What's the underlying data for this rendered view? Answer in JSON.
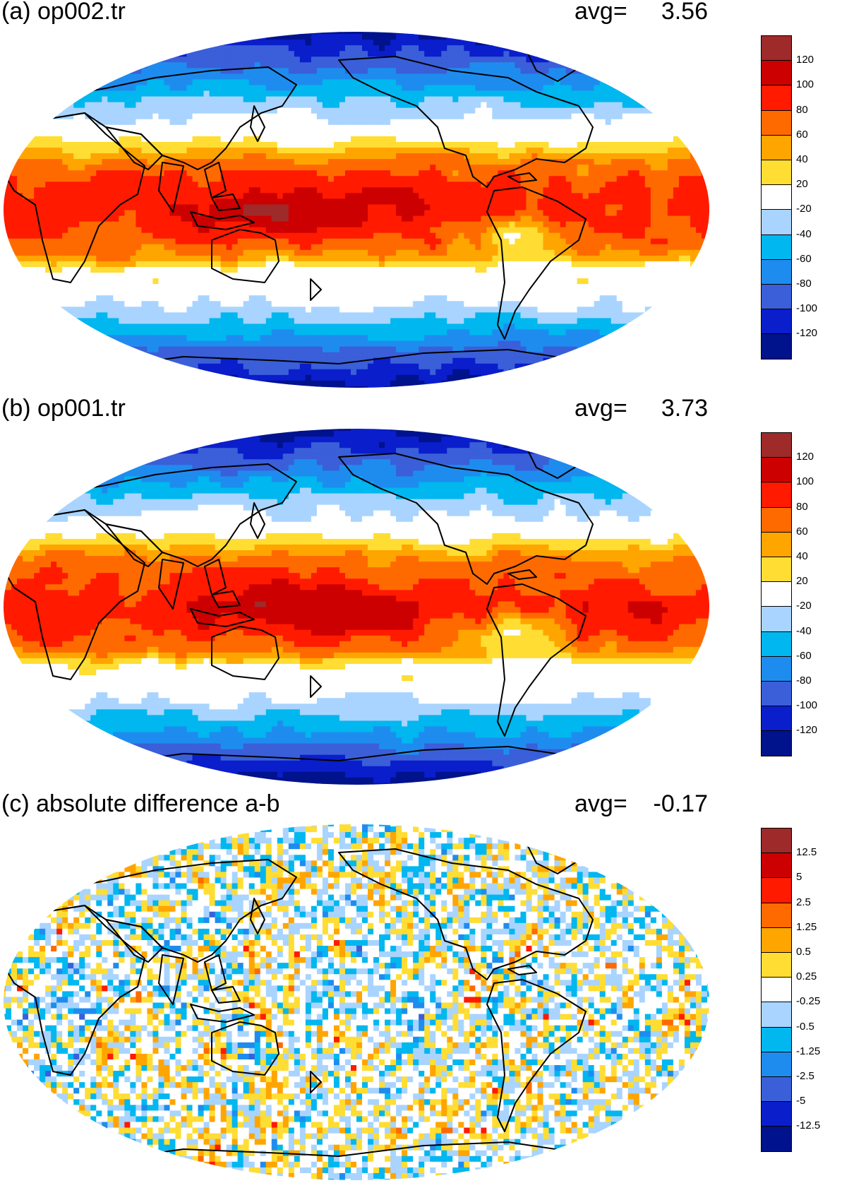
{
  "panels": [
    {
      "id": "a",
      "title": "(a) op002.tr",
      "avg_label": "avg=",
      "avg_value": "3.56",
      "kind": "field",
      "colorbar": {
        "labels": [
          "120",
          "100",
          "80",
          "60",
          "40",
          "20",
          "-20",
          "-40",
          "-60",
          "-80",
          "-100",
          "-120"
        ],
        "colors": [
          "#9e2a2a",
          "#cc0000",
          "#ff1a00",
          "#ff6a00",
          "#ffa500",
          "#ffdd33",
          "#ffffff",
          "#a9d4ff",
          "#00b7ef",
          "#1e8cef",
          "#3a5fd9",
          "#0a1ecc",
          "#00128c"
        ]
      }
    },
    {
      "id": "b",
      "title": "(b) op001.tr",
      "avg_label": "avg=",
      "avg_value": "3.73",
      "kind": "field",
      "colorbar": {
        "labels": [
          "120",
          "100",
          "80",
          "60",
          "40",
          "20",
          "-20",
          "-40",
          "-60",
          "-80",
          "-100",
          "-120"
        ],
        "colors": [
          "#9e2a2a",
          "#cc0000",
          "#ff1a00",
          "#ff6a00",
          "#ffa500",
          "#ffdd33",
          "#ffffff",
          "#a9d4ff",
          "#00b7ef",
          "#1e8cef",
          "#3a5fd9",
          "#0a1ecc",
          "#00128c"
        ]
      }
    },
    {
      "id": "c",
      "title": "(c) absolute difference a-b",
      "avg_label": "avg=",
      "avg_value": "-0.17",
      "kind": "difference",
      "colorbar": {
        "labels": [
          "12.5",
          "5",
          "2.5",
          "1.25",
          "0.5",
          "0.25",
          "-0.25",
          "-0.5",
          "-1.25",
          "-2.5",
          "-5",
          "-12.5"
        ],
        "colors": [
          "#9e2a2a",
          "#cc0000",
          "#ff1a00",
          "#ff6a00",
          "#ffa500",
          "#ffdd33",
          "#ffffff",
          "#a9d4ff",
          "#00b7ef",
          "#1e8cef",
          "#3a5fd9",
          "#0a1ecc",
          "#00128c"
        ]
      }
    }
  ]
}
